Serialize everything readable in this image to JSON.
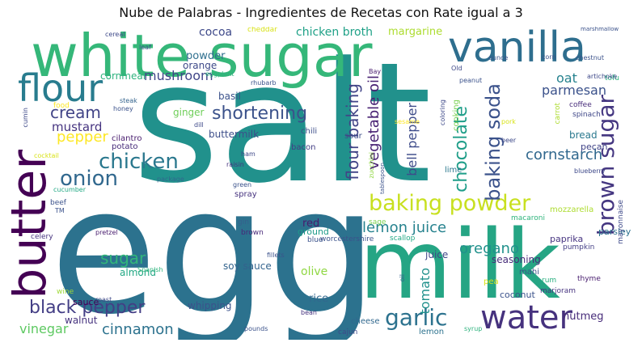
{
  "title": "Nube de Palabras - Ingredientes de Recetas con Rate igual a 3",
  "words": [
    {
      "text": "salt",
      "color": "#21918c"
    },
    {
      "text": "egg",
      "color": "#2c728e"
    },
    {
      "text": "milk",
      "color": "#25a584"
    },
    {
      "text": "white sugar",
      "color": "#35b779"
    },
    {
      "text": "butter",
      "color": "#440154"
    },
    {
      "text": "vanilla",
      "color": "#2e6e8e"
    },
    {
      "text": "flour",
      "color": "#287c8e"
    },
    {
      "text": "water",
      "color": "#46327e"
    },
    {
      "text": "baking powder",
      "color": "#c8e020"
    },
    {
      "text": "chicken",
      "color": "#2a788e"
    },
    {
      "text": "onion",
      "color": "#31688e"
    },
    {
      "text": "black pepper",
      "color": "#433e85"
    },
    {
      "text": "baking soda",
      "color": "#3b528b"
    },
    {
      "text": "brown sugar",
      "color": "#453781"
    },
    {
      "text": "shortening",
      "color": "#3b528b"
    },
    {
      "text": "flour baking",
      "color": "#414487"
    },
    {
      "text": "vegetable oil",
      "color": "#482173"
    },
    {
      "text": "chocolate",
      "color": "#1f9e89"
    },
    {
      "text": "garlic",
      "color": "#2c728e"
    },
    {
      "text": "cream",
      "color": "#414487"
    },
    {
      "text": "sugar",
      "color": "#32b67a"
    },
    {
      "text": "lemon juice",
      "color": "#26828e"
    },
    {
      "text": "cinnamon",
      "color": "#2c728e"
    },
    {
      "text": "oregano",
      "color": "#21918c"
    },
    {
      "text": "cornstarch",
      "color": "#31688e"
    },
    {
      "text": "bell pepper",
      "color": "#3e4c8a"
    },
    {
      "text": "pepper",
      "color": "#fde725"
    },
    {
      "text": "tomato",
      "color": "#21918c"
    },
    {
      "text": "vinegar",
      "color": "#5ec962"
    },
    {
      "text": "mushroom",
      "color": "#404588"
    },
    {
      "text": "parmesan",
      "color": "#3b528b"
    },
    {
      "text": "mustard",
      "color": "#463480"
    },
    {
      "text": "oat",
      "color": "#26828e"
    },
    {
      "text": "chicken broth",
      "color": "#1fa187"
    },
    {
      "text": "cocoa",
      "color": "#3e4989"
    },
    {
      "text": "powder",
      "color": "#2e6f8e"
    },
    {
      "text": "margarine",
      "color": "#addc30"
    },
    {
      "text": "nutmeg",
      "color": "#472c7a"
    },
    {
      "text": "olive",
      "color": "#90d743"
    },
    {
      "text": "seasoning",
      "color": "#472c7a"
    },
    {
      "text": "juice",
      "color": "#3f4788"
    },
    {
      "text": "basil",
      "color": "#3b528b"
    },
    {
      "text": "ginger",
      "color": "#6ece58"
    },
    {
      "text": "buttermilk",
      "color": "#3d4e8a"
    },
    {
      "text": "whipping",
      "color": "#3b528b"
    },
    {
      "text": "coconut",
      "color": "#3b528b"
    },
    {
      "text": "rice",
      "color": "#31688e"
    },
    {
      "text": "almond",
      "color": "#22a884"
    },
    {
      "text": "soy sauce",
      "color": "#33638d"
    },
    {
      "text": "sauce",
      "color": "#440154"
    },
    {
      "text": "walnut",
      "color": "#46337f"
    },
    {
      "text": "orange",
      "color": "#3e4989"
    },
    {
      "text": "cornmeal",
      "color": "#2db27d"
    },
    {
      "text": "bread",
      "color": "#2a788e"
    },
    {
      "text": "pecan",
      "color": "#404387"
    },
    {
      "text": "parsley",
      "color": "#2c728e"
    },
    {
      "text": "paprika",
      "color": "#463480"
    },
    {
      "text": "red",
      "color": "#481c6e"
    },
    {
      "text": "ground",
      "color": "#1e9b8a"
    },
    {
      "text": "mozzarella",
      "color": "#addc30"
    },
    {
      "text": "mayonnaise",
      "color": "#3e4989"
    },
    {
      "text": "sour",
      "color": "#3d4e8a"
    },
    {
      "text": "chili",
      "color": "#3d4e8a"
    },
    {
      "text": "bacon",
      "color": "#433e85"
    },
    {
      "text": "lime",
      "color": "#2a788e"
    },
    {
      "text": "cooking",
      "color": "#7ad151"
    },
    {
      "text": "lemon",
      "color": "#2c728e"
    },
    {
      "text": "mahi",
      "color": "#3b528b"
    },
    {
      "text": "pea",
      "color": "#d8e219"
    },
    {
      "text": "cheese",
      "color": "#31688e"
    },
    {
      "text": "spray",
      "color": "#46337f"
    },
    {
      "text": "potato",
      "color": "#472c7a"
    },
    {
      "text": "cilantro",
      "color": "#481c6e"
    },
    {
      "text": "spinach",
      "color": "#3f4788"
    },
    {
      "text": "coffee",
      "color": "#472c7a"
    },
    {
      "text": "carrot",
      "color": "#addc30"
    },
    {
      "text": "tofu",
      "color": "#2db27d"
    },
    {
      "text": "pumpkin",
      "color": "#433e85"
    },
    {
      "text": "thyme",
      "color": "#481c6e"
    },
    {
      "text": "rum",
      "color": "#29af7f"
    },
    {
      "text": "marjoram",
      "color": "#46337f"
    },
    {
      "text": "macaroni",
      "color": "#2fb47c"
    },
    {
      "text": "scallop",
      "color": "#22a884"
    },
    {
      "text": "worcestershire",
      "color": "#3b528b"
    },
    {
      "text": "blue",
      "color": "#3b528b"
    },
    {
      "text": "brown",
      "color": "#482878"
    },
    {
      "text": "gin",
      "color": "#35608d"
    },
    {
      "text": "sage",
      "color": "#7ad151"
    },
    {
      "text": "fillets",
      "color": "#3b528b"
    },
    {
      "text": "syrup",
      "color": "#2db27d"
    },
    {
      "text": "cajun",
      "color": "#3e4989"
    },
    {
      "text": "bean",
      "color": "#46337f"
    },
    {
      "text": "roast",
      "color": "#3e4989"
    },
    {
      "text": "wine",
      "color": "#a0da39"
    },
    {
      "text": "pounds",
      "color": "#3b528b"
    },
    {
      "text": "oil",
      "color": "#33638d"
    },
    {
      "text": "Spanish",
      "color": "#2fb47c"
    },
    {
      "text": "pretzel",
      "color": "#481c6e"
    },
    {
      "text": "celery",
      "color": "#46337f"
    },
    {
      "text": "TM",
      "color": "#3b528b"
    },
    {
      "text": "beef",
      "color": "#3b528b"
    },
    {
      "text": "cucumber",
      "color": "#22a884"
    },
    {
      "text": "cocktail",
      "color": "#d8e219"
    },
    {
      "text": "cumin",
      "color": "#3e4989"
    },
    {
      "text": "food",
      "color": "#fde725"
    },
    {
      "text": "honey",
      "color": "#3b528b"
    },
    {
      "text": "steak",
      "color": "#33638d"
    },
    {
      "text": "leaf",
      "color": "#3b528b"
    },
    {
      "text": "cereal",
      "color": "#3e4989"
    },
    {
      "text": "cheddar",
      "color": "#d8e219"
    },
    {
      "text": "eggplant",
      "color": "#2db27d"
    },
    {
      "text": "rhubarb",
      "color": "#3b528b"
    },
    {
      "text": "dill",
      "color": "#3e4989"
    },
    {
      "text": "package",
      "color": "#31688e"
    },
    {
      "text": "green",
      "color": "#3b528b"
    },
    {
      "text": "ham",
      "color": "#3e4989"
    },
    {
      "text": "raisin",
      "color": "#46337f"
    },
    {
      "text": "zucchini",
      "color": "#90d743"
    },
    {
      "text": "tablespoon",
      "color": "#3b528b"
    },
    {
      "text": "sesame",
      "color": "#fde725"
    },
    {
      "text": "coloring",
      "color": "#3e4989"
    },
    {
      "text": "peanut",
      "color": "#3b528b"
    },
    {
      "text": "Old",
      "color": "#3e4989"
    },
    {
      "text": "ounce",
      "color": "#3b528b"
    },
    {
      "text": "Bay",
      "color": "#481c6e"
    },
    {
      "text": "corn",
      "color": "#3b528b"
    },
    {
      "text": "chestnut",
      "color": "#3b528b"
    },
    {
      "text": "artichoke",
      "color": "#3e4989"
    },
    {
      "text": "marshmallow",
      "color": "#3b528b"
    },
    {
      "text": "beer",
      "color": "#3e4989"
    },
    {
      "text": "blueberry",
      "color": "#3e4989"
    },
    {
      "text": "pork",
      "color": "#d8e219"
    }
  ]
}
